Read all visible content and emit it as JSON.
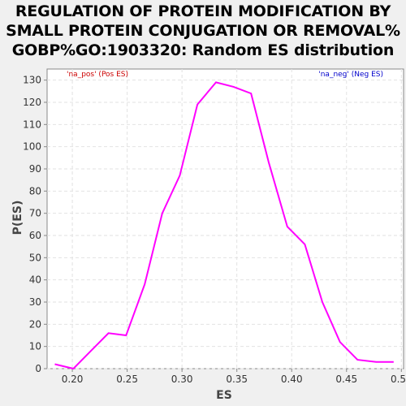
{
  "chart_data": {
    "type": "line",
    "title_lines": [
      "REGULATION OF PROTEIN MODIFICATION BY",
      "SMALL PROTEIN CONJUGATION OR REMOVAL%",
      "GOBP%GO:1903320: Random ES distribution"
    ],
    "xlabel": "ES",
    "ylabel": "P(ES)",
    "xlim": [
      0.177,
      0.502
    ],
    "ylim": [
      0,
      135
    ],
    "xticks": [
      0.2,
      0.25,
      0.3,
      0.35,
      0.4,
      0.45,
      0.5
    ],
    "xtick_labels": [
      "0.20",
      "0.25",
      "0.30",
      "0.35",
      "0.40",
      "0.45",
      "0.50"
    ],
    "yticks": [
      0,
      10,
      20,
      30,
      40,
      50,
      60,
      70,
      80,
      90,
      100,
      110,
      120,
      130
    ],
    "ytick_labels": [
      "0",
      "10",
      "20",
      "30",
      "40",
      "50",
      "60",
      "70",
      "80",
      "90",
      "100",
      "110",
      "120",
      "130"
    ],
    "grid": true,
    "legend": {
      "pos_label": "'na_pos' (Pos ES)",
      "neg_label": "'na_neg' (Neg ES)",
      "pos_color": "#cc0000",
      "neg_color": "#0000cc"
    },
    "series": [
      {
        "color": "#ff00ff",
        "x": [
          0.184,
          0.201,
          0.217,
          0.233,
          0.249,
          0.266,
          0.282,
          0.298,
          0.314,
          0.331,
          0.347,
          0.363,
          0.379,
          0.396,
          0.412,
          0.428,
          0.444,
          0.46,
          0.477,
          0.493
        ],
        "y": [
          2,
          0,
          8,
          16,
          15,
          38,
          70,
          87,
          119,
          129,
          127,
          124,
          93,
          64,
          56,
          30,
          12,
          4,
          3,
          3
        ]
      }
    ]
  }
}
